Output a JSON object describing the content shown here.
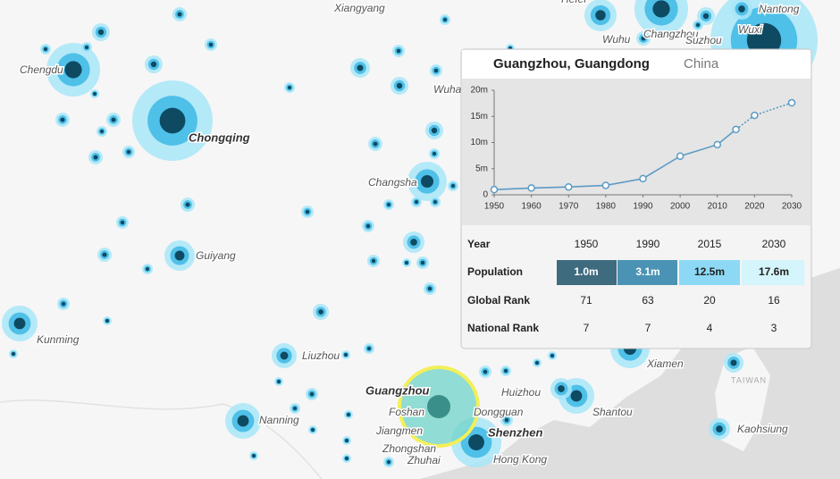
{
  "map": {
    "cities": [
      "Xiangyang",
      "Hefei",
      "Nantong",
      "Wuxi",
      "Changzhou",
      "Suzhou",
      "Wuhu",
      "Chengdu",
      "Chongqing",
      "Wuhan",
      "Changsha",
      "Guiyang",
      "Kunming",
      "Liuzhou",
      "Nanning",
      "Guangzhou",
      "Foshan",
      "Jiangmen",
      "Zhongshan",
      "Zhuhai",
      "Dongguan",
      "Shenzhen",
      "Hong Kong",
      "Huizhou",
      "Shantou",
      "Xiamen",
      "Kaohsiung"
    ],
    "region_label": "TAIWAN"
  },
  "popup": {
    "title": "Guangzhou, Guangdong",
    "country": "China"
  },
  "chart_data": {
    "type": "line",
    "color": "#5b9bc4",
    "x": [
      1950,
      1960,
      1970,
      1980,
      1990,
      2000,
      2010,
      2015
    ],
    "values": [
      1.0,
      1.3,
      1.5,
      1.8,
      3.1,
      7.4,
      9.6,
      12.5
    ],
    "projection": {
      "x": [
        2020,
        2030
      ],
      "values": [
        15.2,
        17.6
      ]
    },
    "xlim": [
      1950,
      2030
    ],
    "xticks": [
      1950,
      1960,
      1970,
      1980,
      1990,
      2000,
      2010,
      2020,
      2030
    ],
    "ylim": [
      0,
      20
    ],
    "yticks": [
      0,
      {
        "value": 5,
        "label": "5m"
      },
      {
        "value": 10,
        "label": "10m"
      },
      {
        "value": 15,
        "label": "15m"
      },
      {
        "value": 20,
        "label": "20m"
      }
    ]
  },
  "table": {
    "header": [
      "Year",
      "1950",
      "1990",
      "2015",
      "2030"
    ],
    "rows": [
      [
        "Population",
        "1.0m",
        "3.1m",
        "12.5m",
        "17.6m"
      ],
      [
        "Global Rank",
        71,
        63,
        20,
        16
      ],
      [
        "National Rank",
        7,
        7,
        4,
        3
      ]
    ],
    "population_colors": [
      "#3f6b7f",
      "#4a93b5",
      "#8dd9f5",
      "#d4f5fb"
    ]
  }
}
